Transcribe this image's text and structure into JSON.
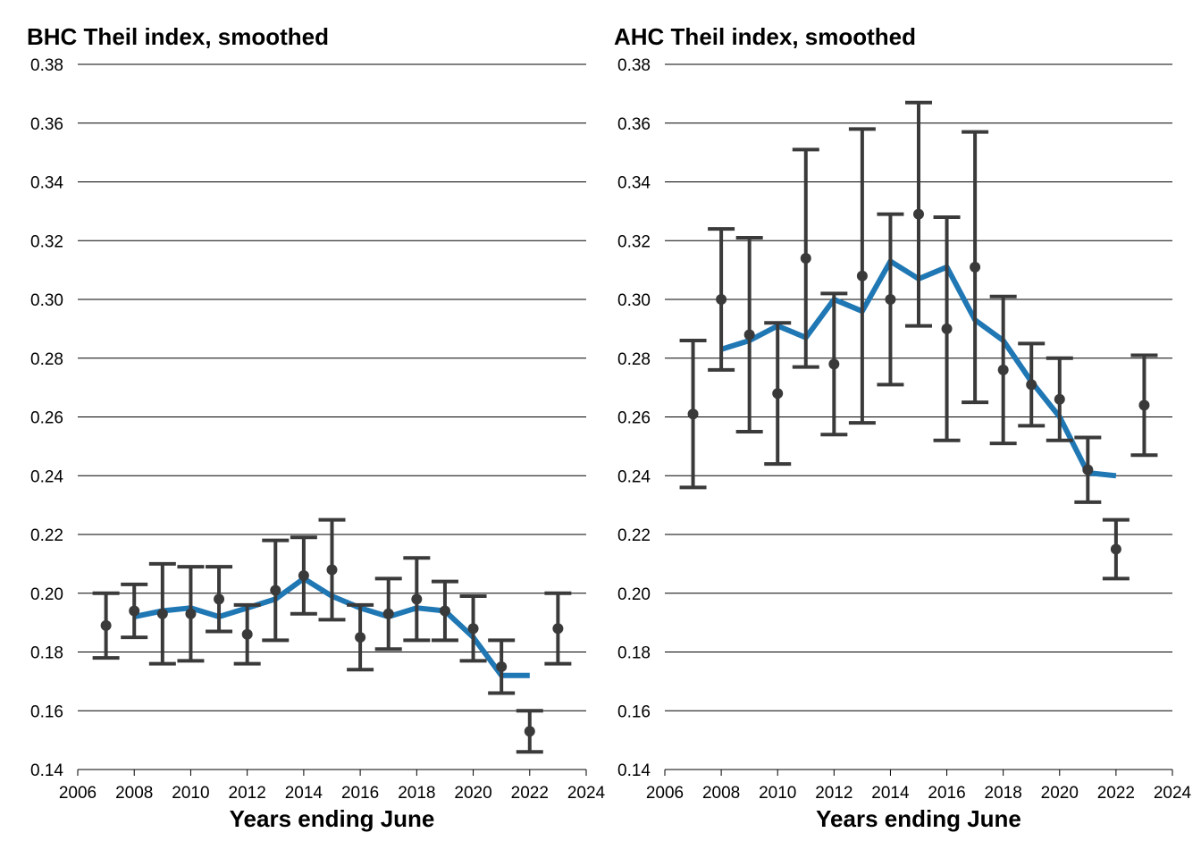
{
  "chart_data": [
    {
      "type": "line",
      "title": "BHC Theil index, smoothed",
      "xlabel": "Years ending June",
      "ylabel": "",
      "xlim": [
        2006,
        2024
      ],
      "ylim": [
        0.14,
        0.38
      ],
      "xticks": [
        "2006",
        "2008",
        "2010",
        "2012",
        "2014",
        "2016",
        "2018",
        "2020",
        "2022",
        "2024"
      ],
      "yticks": [
        "0.14",
        "0.16",
        "0.18",
        "0.20",
        "0.22",
        "0.24",
        "0.26",
        "0.28",
        "0.30",
        "0.32",
        "0.34",
        "0.36",
        "0.38"
      ],
      "grid": "horizontal",
      "legend": "none",
      "colors": {
        "line": "#1f77b4",
        "points": "#3a3a3a"
      },
      "series": [
        {
          "type": "line",
          "x": [
            2008,
            2009,
            2010,
            2011,
            2012,
            2013,
            2014,
            2015,
            2016,
            2017,
            2018,
            2019,
            2020,
            2021,
            2022
          ],
          "values": [
            0.192,
            0.194,
            0.195,
            0.192,
            0.195,
            0.198,
            0.205,
            0.199,
            0.195,
            0.192,
            0.195,
            0.194,
            0.185,
            0.172,
            0.172
          ]
        },
        {
          "type": "points_with_error_bars",
          "x": [
            2007,
            2008,
            2009,
            2010,
            2011,
            2012,
            2013,
            2014,
            2015,
            2016,
            2017,
            2018,
            2019,
            2020,
            2021,
            2022,
            2023
          ],
          "values": [
            0.189,
            0.194,
            0.193,
            0.193,
            0.198,
            0.186,
            0.201,
            0.206,
            0.208,
            0.185,
            0.193,
            0.198,
            0.194,
            0.188,
            0.175,
            0.153,
            0.188
          ],
          "lower": [
            0.178,
            0.185,
            0.176,
            0.177,
            0.187,
            0.176,
            0.184,
            0.193,
            0.191,
            0.174,
            0.181,
            0.184,
            0.184,
            0.177,
            0.166,
            0.146,
            0.176
          ],
          "upper": [
            0.2,
            0.203,
            0.21,
            0.209,
            0.209,
            0.196,
            0.218,
            0.219,
            0.225,
            0.196,
            0.205,
            0.212,
            0.204,
            0.199,
            0.184,
            0.16,
            0.2
          ]
        }
      ]
    },
    {
      "type": "line",
      "title": "AHC Theil index, smoothed",
      "xlabel": "Years ending June",
      "ylabel": "",
      "xlim": [
        2006,
        2024
      ],
      "ylim": [
        0.14,
        0.38
      ],
      "xticks": [
        "2006",
        "2008",
        "2010",
        "2012",
        "2014",
        "2016",
        "2018",
        "2020",
        "2022",
        "2024"
      ],
      "yticks": [
        "0.14",
        "0.16",
        "0.18",
        "0.20",
        "0.22",
        "0.24",
        "0.26",
        "0.28",
        "0.30",
        "0.32",
        "0.34",
        "0.36",
        "0.38"
      ],
      "grid": "horizontal",
      "legend": "none",
      "colors": {
        "line": "#1f77b4",
        "points": "#3a3a3a"
      },
      "series": [
        {
          "type": "line",
          "x": [
            2008,
            2009,
            2010,
            2011,
            2012,
            2013,
            2014,
            2015,
            2016,
            2017,
            2018,
            2019,
            2020,
            2021,
            2022
          ],
          "values": [
            0.283,
            0.286,
            0.291,
            0.287,
            0.3,
            0.296,
            0.313,
            0.307,
            0.311,
            0.293,
            0.286,
            0.272,
            0.26,
            0.241,
            0.24
          ]
        },
        {
          "type": "points_with_error_bars",
          "x": [
            2007,
            2008,
            2009,
            2010,
            2011,
            2012,
            2013,
            2014,
            2015,
            2016,
            2017,
            2018,
            2019,
            2020,
            2021,
            2022,
            2023
          ],
          "values": [
            0.261,
            0.3,
            0.288,
            0.268,
            0.314,
            0.278,
            0.308,
            0.3,
            0.329,
            0.29,
            0.311,
            0.276,
            0.271,
            0.266,
            0.242,
            0.215,
            0.264
          ],
          "lower": [
            0.236,
            0.276,
            0.255,
            0.244,
            0.277,
            0.254,
            0.258,
            0.271,
            0.291,
            0.252,
            0.265,
            0.251,
            0.257,
            0.252,
            0.231,
            0.205,
            0.247
          ],
          "upper": [
            0.286,
            0.324,
            0.321,
            0.292,
            0.351,
            0.302,
            0.358,
            0.329,
            0.367,
            0.328,
            0.357,
            0.301,
            0.285,
            0.28,
            0.253,
            0.225,
            0.281
          ]
        }
      ]
    }
  ]
}
